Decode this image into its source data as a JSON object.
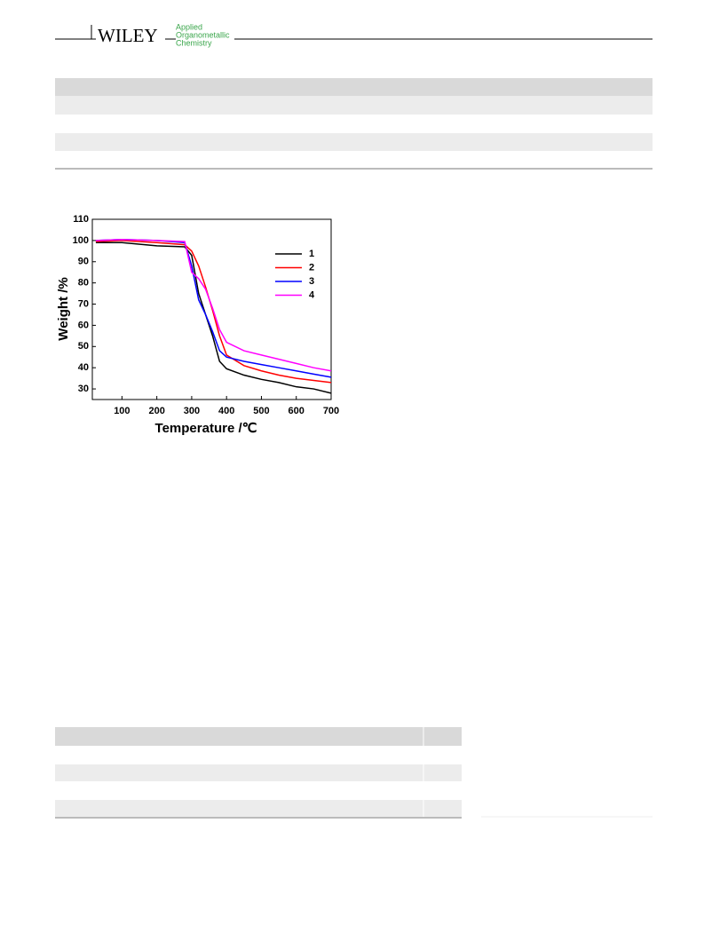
{
  "header": {
    "publisher": "WILEY",
    "journal": [
      "Applied",
      "Organometallic",
      "Chemistry"
    ]
  },
  "chart_data": {
    "type": "line",
    "x_label": "Temperature /℃",
    "y_label": "Weight /%",
    "x": [
      25,
      100,
      200,
      280,
      300,
      320,
      340,
      360,
      380,
      400,
      450,
      500,
      550,
      600,
      650,
      700
    ],
    "series": [
      {
        "name": "1",
        "color": "#000000",
        "values": [
          99,
          99,
          97.5,
          97,
          93,
          75,
          65,
          55,
          43,
          39.5,
          36.5,
          34.5,
          33,
          31,
          30,
          28
        ]
      },
      {
        "name": "2",
        "color": "#ff0000",
        "values": [
          99.5,
          100,
          99,
          98,
          95,
          88,
          78,
          67,
          55,
          46,
          41,
          38.5,
          36.5,
          35,
          34,
          33
        ]
      },
      {
        "name": "3",
        "color": "#0000ff",
        "values": [
          100,
          100.5,
          100,
          99,
          88,
          72,
          65,
          57,
          48,
          45,
          43,
          41.5,
          40,
          38.5,
          37,
          35.5
        ]
      },
      {
        "name": "4",
        "color": "#ff00ff",
        "values": [
          100,
          100.5,
          100,
          99.5,
          85,
          82,
          77,
          68,
          58,
          52,
          48,
          46,
          44,
          42,
          40,
          38.5
        ]
      }
    ],
    "xlim": [
      15,
      700
    ],
    "ylim": [
      25,
      110
    ],
    "xticks": [
      100,
      200,
      300,
      400,
      500,
      600,
      700
    ],
    "yticks": [
      30,
      40,
      50,
      60,
      70,
      80,
      90,
      100,
      110
    ],
    "legend": "upper-right"
  }
}
